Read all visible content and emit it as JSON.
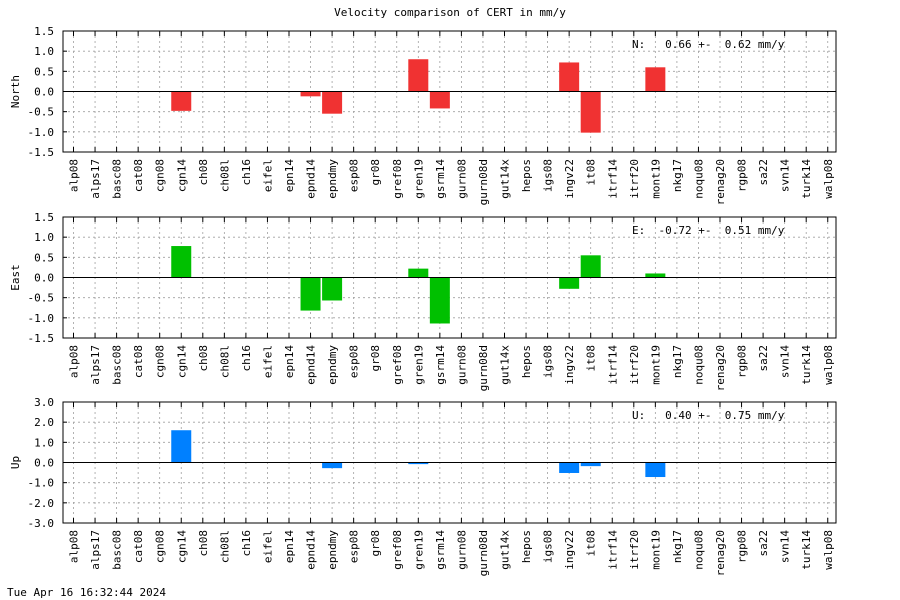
{
  "title": "Velocity comparison of CERT in mm/y",
  "footer": "Tue Apr 16 16:32:44 2024",
  "colors": {
    "north": "#f03232",
    "east": "#00c000",
    "up": "#0080ff",
    "grid": "#a0a0a0",
    "axis": "#000000"
  },
  "chart_data": [
    {
      "type": "bar",
      "panel": "north",
      "ylabel": "North",
      "ylim": [
        -1.5,
        1.5
      ],
      "yticks": [
        "1.5",
        "1.0",
        "0.5",
        "0.0",
        "-0.5",
        "-1.0",
        "-1.5"
      ],
      "summary": "N:   0.66 +-  0.62 mm/y",
      "categories": [
        "alp08",
        "alps17",
        "basc08",
        "cat08",
        "cgn08",
        "cgn14",
        "ch08",
        "ch08l",
        "ch16",
        "eifel",
        "epn14",
        "epnd14",
        "epndmy",
        "esp08",
        "gr08",
        "gref08",
        "gren19",
        "gsrm14",
        "gurn08",
        "gurn08d",
        "gut14x",
        "hepos",
        "igs08",
        "ingv22",
        "it08",
        "itrf14",
        "itrf20",
        "mont19",
        "nkg17",
        "noqu08",
        "renag20",
        "rgp08",
        "sa22",
        "svn14",
        "turk14",
        "walp08"
      ],
      "values": [
        null,
        null,
        null,
        null,
        null,
        -0.48,
        null,
        null,
        null,
        null,
        null,
        -0.12,
        -0.55,
        null,
        null,
        null,
        0.8,
        -0.42,
        null,
        null,
        null,
        null,
        null,
        0.72,
        -1.02,
        null,
        null,
        0.6,
        null,
        null,
        null,
        null,
        null,
        null,
        null,
        null
      ]
    },
    {
      "type": "bar",
      "panel": "east",
      "ylabel": "East",
      "ylim": [
        -1.5,
        1.5
      ],
      "yticks": [
        "1.5",
        "1.0",
        "0.5",
        "0.0",
        "-0.5",
        "-1.0",
        "-1.5"
      ],
      "summary": "E:  -0.72 +-  0.51 mm/y",
      "categories": [
        "alp08",
        "alps17",
        "basc08",
        "cat08",
        "cgn08",
        "cgn14",
        "ch08",
        "ch08l",
        "ch16",
        "eifel",
        "epn14",
        "epnd14",
        "epndmy",
        "esp08",
        "gr08",
        "gref08",
        "gren19",
        "gsrm14",
        "gurn08",
        "gurn08d",
        "gut14x",
        "hepos",
        "igs08",
        "ingv22",
        "it08",
        "itrf14",
        "itrf20",
        "mont19",
        "nkg17",
        "noqu08",
        "renag20",
        "rgp08",
        "sa22",
        "svn14",
        "turk14",
        "walp08"
      ],
      "values": [
        null,
        null,
        null,
        null,
        null,
        0.78,
        null,
        null,
        null,
        null,
        null,
        -0.82,
        -0.57,
        null,
        null,
        null,
        0.22,
        -1.14,
        null,
        null,
        null,
        null,
        null,
        -0.28,
        0.55,
        null,
        null,
        0.1,
        null,
        null,
        null,
        null,
        null,
        null,
        null,
        null
      ]
    },
    {
      "type": "bar",
      "panel": "up",
      "ylabel": "Up",
      "ylim": [
        -3.0,
        3.0
      ],
      "yticks": [
        "3.0",
        "2.0",
        "1.0",
        "0.0",
        "-1.0",
        "-2.0",
        "-3.0"
      ],
      "summary": "U:   0.40 +-  0.75 mm/y",
      "categories": [
        "alp08",
        "alps17",
        "basc08",
        "cat08",
        "cgn08",
        "cgn14",
        "ch08",
        "ch08l",
        "ch16",
        "eifel",
        "epn14",
        "epnd14",
        "epndmy",
        "esp08",
        "gr08",
        "gref08",
        "gren19",
        "gsrm14",
        "gurn08",
        "gurn08d",
        "gut14x",
        "hepos",
        "igs08",
        "ingv22",
        "it08",
        "itrf14",
        "itrf20",
        "mont19",
        "nkg17",
        "noqu08",
        "renag20",
        "rgp08",
        "sa22",
        "svn14",
        "turk14",
        "walp08"
      ],
      "values": [
        null,
        null,
        null,
        null,
        null,
        1.6,
        null,
        null,
        null,
        null,
        null,
        null,
        -0.28,
        null,
        null,
        null,
        -0.08,
        null,
        null,
        null,
        null,
        null,
        null,
        -0.52,
        -0.18,
        null,
        null,
        -0.72,
        null,
        null,
        null,
        null,
        null,
        null,
        null,
        null
      ]
    }
  ]
}
